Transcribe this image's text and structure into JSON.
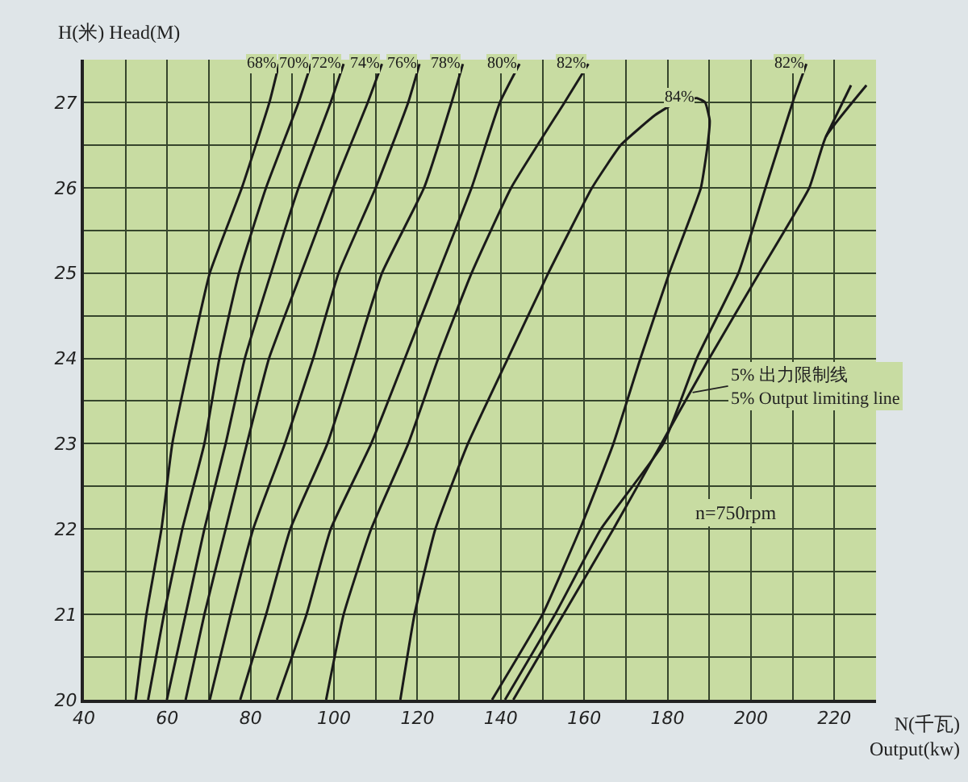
{
  "chart_data": {
    "type": "line",
    "xlabel": "N(千瓦)\nOutput(kw)",
    "ylabel": "H(米) Head(M)",
    "xlim": [
      40,
      230
    ],
    "ylim": [
      20,
      27.5
    ],
    "xticks": [
      40,
      {
        "value": 50,
        "label": null
      },
      60,
      {
        "value": 70,
        "label": null
      },
      80,
      {
        "value": 90,
        "label": null
      },
      100,
      {
        "value": 110,
        "label": null
      },
      120,
      {
        "value": 130,
        "label": null
      },
      140,
      {
        "value": 150,
        "label": null
      },
      160,
      {
        "value": 170,
        "label": null
      },
      180,
      {
        "value": 190,
        "label": null
      },
      200,
      {
        "value": 210,
        "label": null
      },
      220
    ],
    "yticks": [
      20,
      {
        "value": 20.5,
        "label": null
      },
      21,
      {
        "value": 21.5,
        "label": null
      },
      22,
      {
        "value": 22.5,
        "label": null
      },
      23,
      {
        "value": 23.5,
        "label": null
      },
      24,
      {
        "value": 24.5,
        "label": null
      },
      25,
      {
        "value": 25.5,
        "label": null
      },
      26,
      {
        "value": 26.5,
        "label": null
      },
      27
    ],
    "grid": true,
    "legend": false,
    "marker": "none",
    "line_style": "solid",
    "series": [
      {
        "name": "68%",
        "color": "#1a1a1a",
        "x": [
          52.4,
          55.0,
          58.6,
          61.2,
          65.5,
          70.2,
          77.9,
          84.5,
          86.8
        ],
        "values": [
          20,
          21,
          22,
          23,
          24,
          25,
          26,
          27,
          27.45
        ]
      },
      {
        "name": "70%",
        "color": "#1a1a1a",
        "x": [
          55.4,
          59.2,
          63.6,
          68.9,
          72.5,
          77.2,
          83.7,
          91.5,
          94.5
        ],
        "values": [
          20,
          21,
          22,
          23,
          24,
          25,
          26,
          27,
          27.45
        ]
      },
      {
        "name": "72%",
        "color": "#1a1a1a",
        "x": [
          59.9,
          64.4,
          68.9,
          74.0,
          78.6,
          84.9,
          91.5,
          99.2,
          102.3
        ],
        "values": [
          20,
          21,
          22,
          23,
          24,
          25,
          26,
          27,
          27.45
        ]
      },
      {
        "name": "74%",
        "color": "#1a1a1a",
        "x": [
          64.4,
          68.9,
          74.0,
          79.1,
          84.4,
          92.1,
          99.8,
          108.1,
          111.5
        ],
        "values": [
          20,
          21,
          22,
          23,
          24,
          25,
          26,
          27,
          27.45
        ]
      },
      {
        "name": "76%",
        "color": "#1a1a1a",
        "x": [
          70.2,
          75.2,
          80.6,
          88.2,
          95,
          101.1,
          110,
          117.8,
          120.5
        ],
        "values": [
          20,
          21,
          22,
          23,
          24,
          25,
          26,
          27,
          27.45
        ]
      },
      {
        "name": "78%",
        "color": "#1a1a1a",
        "x": [
          77.5,
          83.7,
          89.5,
          98.4,
          105,
          111.5,
          121.6,
          128.2,
          130.9
        ],
        "values": [
          20,
          21,
          22,
          23,
          24,
          25,
          26,
          27,
          27.45
        ]
      },
      {
        "name": "80%",
        "color": "#1a1a1a",
        "x": [
          86.3,
          93.4,
          99.2,
          108.9,
          117,
          125,
          133,
          139.8,
          144.5
        ],
        "values": [
          20,
          21,
          22,
          23,
          24,
          25,
          26,
          27,
          27.45
        ]
      },
      {
        "name": "82%",
        "color": "#1a1a1a",
        "x": [
          98.1,
          102.3,
          108.9,
          117.8,
          125,
          133,
          142.5,
          155.3,
          161
        ],
        "values": [
          20,
          21,
          22,
          23,
          24,
          25,
          26,
          27,
          27.45
        ]
      },
      {
        "name": "84%",
        "color": "#1a1a1a",
        "x": [
          115.9,
          119.3,
          124.3,
          132.1,
          141.7,
          151.4,
          161.9,
          168.8,
          177,
          181,
          187,
          189,
          190.1,
          189.6,
          188,
          180.4,
          173.5,
          167,
          159,
          150,
          137.9
        ],
        "values": [
          20,
          21,
          22,
          23,
          24,
          25,
          26,
          26.5,
          26.85,
          26.97,
          27.05,
          27.0,
          26.79,
          26.5,
          26,
          25,
          24,
          23,
          22,
          21,
          20
        ]
      },
      {
        "name": "82%",
        "color": "#1a1a1a",
        "x": [
          141,
          153,
          164,
          179,
          187,
          197,
          203.5,
          210,
          213.3
        ],
        "values": [
          20,
          21,
          22,
          23,
          24,
          25,
          26,
          27,
          27.45
        ]
      },
      {
        "color": "#1a1a1a",
        "x": [
          143,
          155,
          167,
          178.5,
          190,
          202,
          214,
          218,
          227.7
        ],
        "values": [
          20,
          21,
          22,
          23,
          24,
          25,
          26,
          26.6,
          27.2
        ]
      },
      {
        "color": "#1a1a1a",
        "x": [
          218,
          224
        ],
        "values": [
          26.6,
          27.2
        ]
      }
    ],
    "annotations": [
      {
        "text": "5% 出力限制线\n5% Output limiting line",
        "x": 186,
        "y": 23.6
      },
      "n=750rpm"
    ]
  }
}
